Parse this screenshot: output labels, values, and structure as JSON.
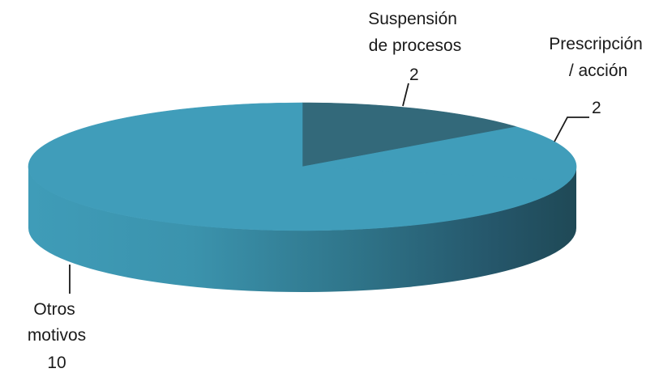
{
  "chart_data": {
    "type": "pie",
    "style": "3d",
    "title": "",
    "legend": "none",
    "slices": [
      {
        "label_lines": [
          "Suspensión",
          "de procesos"
        ],
        "value": 2,
        "value_label": "2",
        "color": "#33697a"
      },
      {
        "label_lines": [
          "Prescripción",
          "/ acción"
        ],
        "value": 2,
        "value_label": "2",
        "color": "#409dba"
      },
      {
        "label_lines": [
          "Otros",
          "motivos"
        ],
        "value": 10,
        "value_label": "10",
        "color": "#409dba"
      }
    ]
  }
}
